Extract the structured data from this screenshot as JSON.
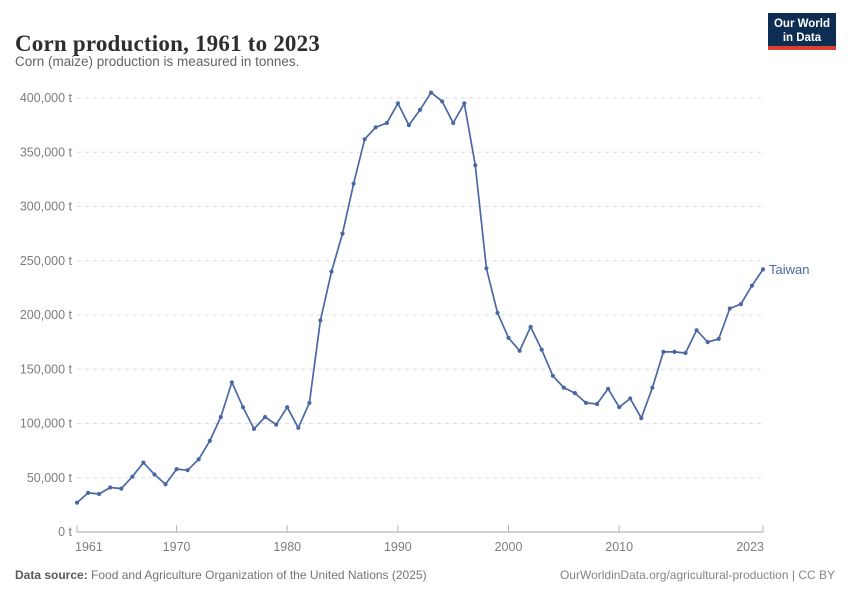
{
  "header": {
    "title": "Corn production, 1961 to 2023",
    "subtitle": "Corn (maize) production is measured in tonnes.",
    "logo": {
      "line1": "Our World",
      "line2": "in Data",
      "bg_color": "#0d2d52",
      "accent_color": "#dc3e32"
    }
  },
  "chart_data": {
    "type": "line",
    "title": "Corn production, 1961 to 2023",
    "entity_label": "Taiwan",
    "unit": "t",
    "line_color": "#4a68a3",
    "grid": true,
    "legend_position": "end-of-line",
    "ylim": [
      0,
      400000
    ],
    "yticks": [
      0,
      50000,
      100000,
      150000,
      200000,
      250000,
      300000,
      350000,
      400000
    ],
    "xticks": [
      1961,
      1970,
      1980,
      1990,
      2000,
      2010,
      2023
    ],
    "x": [
      1961,
      1962,
      1963,
      1964,
      1965,
      1966,
      1967,
      1968,
      1969,
      1970,
      1971,
      1972,
      1973,
      1974,
      1975,
      1976,
      1977,
      1978,
      1979,
      1980,
      1981,
      1982,
      1983,
      1984,
      1985,
      1986,
      1987,
      1988,
      1989,
      1990,
      1991,
      1992,
      1993,
      1994,
      1995,
      1996,
      1997,
      1998,
      1999,
      2000,
      2001,
      2002,
      2003,
      2004,
      2005,
      2006,
      2007,
      2008,
      2009,
      2010,
      2011,
      2012,
      2013,
      2014,
      2015,
      2016,
      2017,
      2018,
      2019,
      2020,
      2021,
      2022,
      2023
    ],
    "series": [
      {
        "name": "Taiwan",
        "values": [
          27000,
          36000,
          35000,
          41000,
          40000,
          51000,
          64000,
          53000,
          44000,
          58000,
          57000,
          67000,
          84000,
          106000,
          138000,
          115000,
          95000,
          106000,
          99000,
          115000,
          96000,
          119000,
          195000,
          240000,
          275000,
          321000,
          362000,
          373000,
          377000,
          395000,
          375000,
          389000,
          405000,
          397000,
          377000,
          395000,
          338000,
          243000,
          202000,
          179000,
          167000,
          189000,
          168000,
          144000,
          133000,
          128000,
          119000,
          118000,
          132000,
          115000,
          123000,
          105000,
          133000,
          166000,
          166000,
          165000,
          186000,
          175000,
          178000,
          206000,
          210000,
          227000,
          242000
        ]
      }
    ]
  },
  "footer": {
    "datasource_label": "Data source:",
    "datasource_text": "Food and Agriculture Organization of the United Nations (2025)",
    "url": "OurWorldinData.org/agricultural-production",
    "separator": " | ",
    "license": "CC BY"
  }
}
